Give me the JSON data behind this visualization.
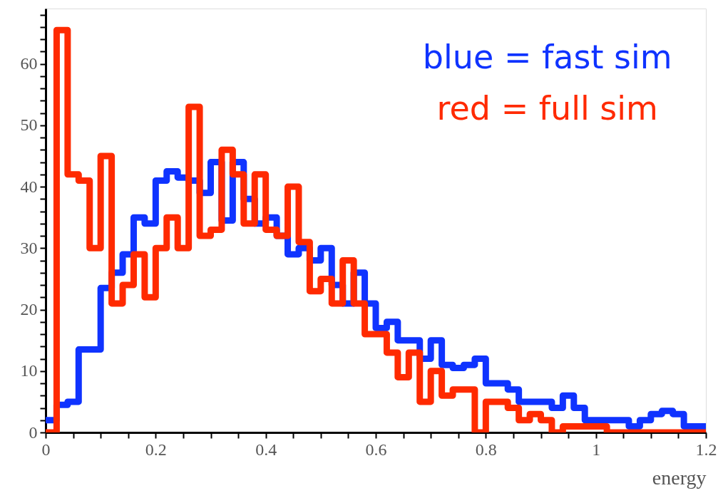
{
  "chart_data": {
    "type": "histogram",
    "xlabel": "energy",
    "bins": [
      0,
      0.02,
      0.04,
      0.06,
      0.08,
      0.1,
      0.12,
      0.14,
      0.16,
      0.18,
      0.2,
      0.22,
      0.24,
      0.26,
      0.28,
      0.3,
      0.32,
      0.34,
      0.36,
      0.38,
      0.4,
      0.42,
      0.44,
      0.46,
      0.48,
      0.5,
      0.52,
      0.54,
      0.56,
      0.58,
      0.6,
      0.62,
      0.64,
      0.66,
      0.68,
      0.7,
      0.72,
      0.74,
      0.76,
      0.78,
      0.8,
      0.82,
      0.84,
      0.86,
      0.88,
      0.9,
      0.92,
      0.94,
      0.96,
      0.98,
      1,
      1.02,
      1.04,
      1.06,
      1.08,
      1.1,
      1.12,
      1.14,
      1.16,
      1.18,
      1.2
    ],
    "series": [
      {
        "name": "blue = fast sim",
        "color": "#0f33ff",
        "values": [
          2,
          4.5,
          5,
          13.5,
          13.5,
          23.5,
          26,
          29,
          35,
          34,
          41,
          42.5,
          41.5,
          41,
          39,
          44,
          34.5,
          44,
          38,
          34,
          35,
          32,
          29,
          30,
          28,
          30,
          24,
          21,
          26,
          21,
          17,
          18,
          15,
          15,
          12,
          15,
          11,
          10.5,
          11,
          12,
          8,
          8,
          7,
          5,
          5,
          5,
          4,
          6,
          4,
          2,
          2,
          2,
          2,
          1,
          2,
          3,
          3.5,
          3,
          1,
          1
        ]
      },
      {
        "name": "red = full sim",
        "color": "#ff2a00",
        "values": [
          0,
          65.5,
          42,
          41,
          30,
          45,
          21,
          24,
          29,
          22,
          30,
          35,
          30,
          53,
          32,
          33,
          46,
          42,
          34,
          42,
          33,
          32,
          40,
          31,
          23,
          25,
          21,
          28,
          21,
          16,
          16,
          13,
          9,
          13,
          5,
          10,
          6,
          7,
          7,
          0,
          5,
          5,
          4,
          2,
          3,
          2,
          0,
          1,
          1,
          1,
          1,
          0,
          0,
          0,
          0,
          0,
          0,
          0,
          0,
          0
        ]
      }
    ],
    "xlim": [
      0,
      1.2
    ],
    "xticks": [
      0,
      {
        "value": 0.05,
        "label": null
      },
      {
        "value": 0.1,
        "label": null
      },
      {
        "value": 0.15,
        "label": null
      },
      0.2,
      {
        "value": 0.25,
        "label": null
      },
      {
        "value": 0.3,
        "label": null
      },
      {
        "value": 0.35,
        "label": null
      },
      0.4,
      {
        "value": 0.45,
        "label": null
      },
      {
        "value": 0.5,
        "label": null
      },
      {
        "value": 0.55,
        "label": null
      },
      0.6,
      {
        "value": 0.65,
        "label": null
      },
      {
        "value": 0.7,
        "label": null
      },
      {
        "value": 0.75,
        "label": null
      },
      0.8,
      {
        "value": 0.85,
        "label": null
      },
      {
        "value": 0.9,
        "label": null
      },
      {
        "value": 0.95,
        "label": null
      },
      1,
      {
        "value": 1.05,
        "label": null
      },
      {
        "value": 1.1,
        "label": null
      },
      {
        "value": 1.15,
        "label": null
      },
      1.2
    ],
    "ylim": [
      0,
      69
    ],
    "yticks": [
      0,
      {
        "value": 2,
        "label": null
      },
      {
        "value": 4,
        "label": null
      },
      {
        "value": 6,
        "label": null
      },
      {
        "value": 8,
        "label": null
      },
      10,
      {
        "value": 12,
        "label": null
      },
      {
        "value": 14,
        "label": null
      },
      {
        "value": 16,
        "label": null
      },
      {
        "value": 18,
        "label": null
      },
      20,
      {
        "value": 22,
        "label": null
      },
      {
        "value": 24,
        "label": null
      },
      {
        "value": 26,
        "label": null
      },
      {
        "value": 28,
        "label": null
      },
      30,
      {
        "value": 32,
        "label": null
      },
      {
        "value": 34,
        "label": null
      },
      {
        "value": 36,
        "label": null
      },
      {
        "value": 38,
        "label": null
      },
      40,
      {
        "value": 42,
        "label": null
      },
      {
        "value": 44,
        "label": null
      },
      {
        "value": 46,
        "label": null
      },
      {
        "value": 48,
        "label": null
      },
      50,
      {
        "value": 52,
        "label": null
      },
      {
        "value": 54,
        "label": null
      },
      {
        "value": 56,
        "label": null
      },
      {
        "value": 58,
        "label": null
      },
      60,
      {
        "value": 62,
        "label": null
      },
      {
        "value": 64,
        "label": null
      },
      {
        "value": 66,
        "label": null
      },
      {
        "value": 68,
        "label": null
      }
    ],
    "grid": false,
    "legend": "top right",
    "marker": "none",
    "line_style": "solid"
  }
}
